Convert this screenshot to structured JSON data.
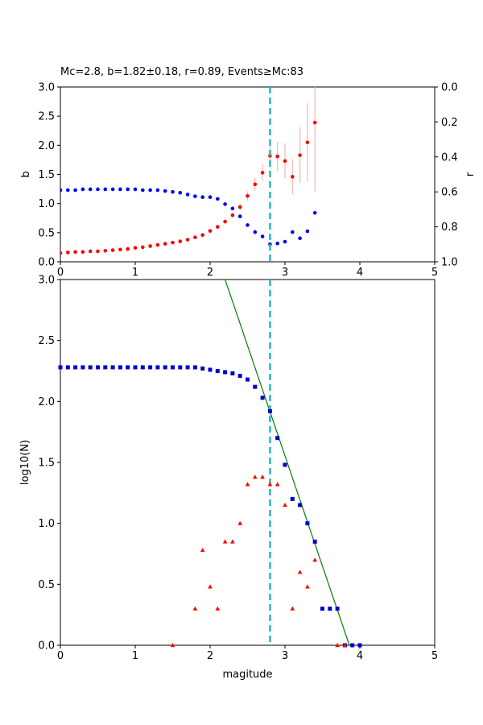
{
  "chart_data": [
    {
      "type": "scatter",
      "title": "Mc=2.8, b=1.82±0.18, r=0.89, Events≥Mc:83",
      "xlabel": "",
      "ylabel": "b",
      "ylabel_right": "r",
      "xlim": [
        0,
        5
      ],
      "ylim": [
        0,
        3.0
      ],
      "ylim_right": [
        1.0,
        0.0
      ],
      "x_ticks": [
        "0",
        "1",
        "2",
        "3",
        "4",
        "5"
      ],
      "y_ticks": [
        "0.0",
        "0.5",
        "1.0",
        "1.5",
        "2.0",
        "2.5",
        "3.0"
      ],
      "y_ticks_right": [
        "0.0",
        "0.2",
        "0.4",
        "0.6",
        "0.8",
        "1.0"
      ],
      "vline_x": 2.8,
      "vline_color": "#17becf",
      "series": [
        {
          "color": "#ff0000",
          "axis": "left",
          "x": [
            0.0,
            0.1,
            0.2,
            0.3,
            0.4,
            0.5,
            0.6,
            0.7,
            0.8,
            0.9,
            1.0,
            1.1,
            1.2,
            1.3,
            1.4,
            1.5,
            1.6,
            1.7,
            1.8,
            1.9,
            2.0,
            2.1,
            2.2,
            2.3,
            2.4,
            2.5,
            2.6,
            2.7,
            2.8,
            2.9,
            3.0,
            3.1,
            3.2,
            3.3,
            3.4
          ],
          "y": [
            0.15,
            0.16,
            0.17,
            0.17,
            0.18,
            0.18,
            0.19,
            0.2,
            0.21,
            0.22,
            0.24,
            0.25,
            0.27,
            0.29,
            0.31,
            0.33,
            0.35,
            0.38,
            0.42,
            0.46,
            0.53,
            0.6,
            0.69,
            0.8,
            0.94,
            1.13,
            1.33,
            1.53,
            1.82,
            1.81,
            1.73,
            1.46,
            1.83,
            2.05,
            2.39
          ],
          "err": [
            0.01,
            0.01,
            0.01,
            0.01,
            0.01,
            0.01,
            0.01,
            0.01,
            0.01,
            0.01,
            0.01,
            0.01,
            0.01,
            0.01,
            0.01,
            0.01,
            0.01,
            0.01,
            0.02,
            0.02,
            0.02,
            0.03,
            0.03,
            0.04,
            0.06,
            0.08,
            0.11,
            0.14,
            0.18,
            0.25,
            0.3,
            0.3,
            0.48,
            0.67,
            1.18
          ],
          "err_color": "#f4b6b6"
        },
        {
          "color": "#0000ff",
          "axis": "right",
          "x": [
            0.0,
            0.1,
            0.2,
            0.3,
            0.4,
            0.5,
            0.6,
            0.7,
            0.8,
            0.9,
            1.0,
            1.1,
            1.2,
            1.3,
            1.4,
            1.5,
            1.6,
            1.7,
            1.8,
            1.9,
            2.0,
            2.1,
            2.2,
            2.3,
            2.4,
            2.5,
            2.6,
            2.7,
            2.8,
            2.9,
            3.0,
            3.1,
            3.2,
            3.3,
            3.4
          ],
          "y": [
            0.59,
            0.59,
            0.59,
            0.585,
            0.585,
            0.585,
            0.585,
            0.585,
            0.585,
            0.585,
            0.585,
            0.59,
            0.59,
            0.59,
            0.595,
            0.6,
            0.605,
            0.615,
            0.625,
            0.63,
            0.63,
            0.64,
            0.67,
            0.695,
            0.74,
            0.79,
            0.83,
            0.855,
            0.9,
            0.895,
            0.885,
            0.83,
            0.865,
            0.825,
            0.72
          ]
        }
      ]
    },
    {
      "type": "scatter",
      "title": "",
      "xlabel": "magitude",
      "ylabel": "log10(N)",
      "xlim": [
        0,
        5
      ],
      "ylim": [
        0,
        3.0
      ],
      "x_ticks": [
        "0",
        "1",
        "2",
        "3",
        "4",
        "5"
      ],
      "y_ticks": [
        "0.0",
        "0.5",
        "1.0",
        "1.5",
        "2.0",
        "2.5",
        "3.0"
      ],
      "vline_x": 2.8,
      "vline_color": "#17becf",
      "fit_line": {
        "color": "#008000",
        "x": [
          2.2,
          3.86
        ],
        "y": [
          3.0,
          0.0
        ]
      },
      "series": [
        {
          "marker": "square",
          "color": "#0000cc",
          "x": [
            0.0,
            0.1,
            0.2,
            0.3,
            0.4,
            0.5,
            0.6,
            0.7,
            0.8,
            0.9,
            1.0,
            1.1,
            1.2,
            1.3,
            1.4,
            1.5,
            1.6,
            1.7,
            1.8,
            1.9,
            2.0,
            2.1,
            2.2,
            2.3,
            2.4,
            2.5,
            2.6,
            2.7,
            2.8,
            2.9,
            3.0,
            3.1,
            3.2,
            3.3,
            3.4,
            3.5,
            3.6,
            3.7,
            3.8,
            3.9,
            4.0
          ],
          "y": [
            2.28,
            2.28,
            2.28,
            2.28,
            2.28,
            2.28,
            2.28,
            2.28,
            2.28,
            2.28,
            2.28,
            2.28,
            2.28,
            2.28,
            2.28,
            2.28,
            2.28,
            2.28,
            2.28,
            2.27,
            2.26,
            2.25,
            2.24,
            2.23,
            2.21,
            2.18,
            2.12,
            2.03,
            1.92,
            1.7,
            1.48,
            1.2,
            1.15,
            1.0,
            0.85,
            0.3,
            0.3,
            0.3,
            0.0,
            0.0,
            0.0
          ]
        },
        {
          "marker": "triangle",
          "color": "#ff0000",
          "x": [
            1.5,
            1.8,
            1.9,
            2.0,
            2.1,
            2.2,
            2.3,
            2.4,
            2.5,
            2.6,
            2.7,
            2.8,
            2.9,
            3.0,
            3.1,
            3.2,
            3.3,
            3.4,
            3.7,
            3.8
          ],
          "y": [
            0.0,
            0.3,
            0.78,
            0.48,
            0.3,
            0.85,
            0.85,
            1.0,
            1.32,
            1.38,
            1.38,
            1.32,
            1.32,
            1.15,
            0.3,
            0.6,
            0.48,
            0.7,
            0.0,
            0.0
          ]
        }
      ]
    }
  ]
}
